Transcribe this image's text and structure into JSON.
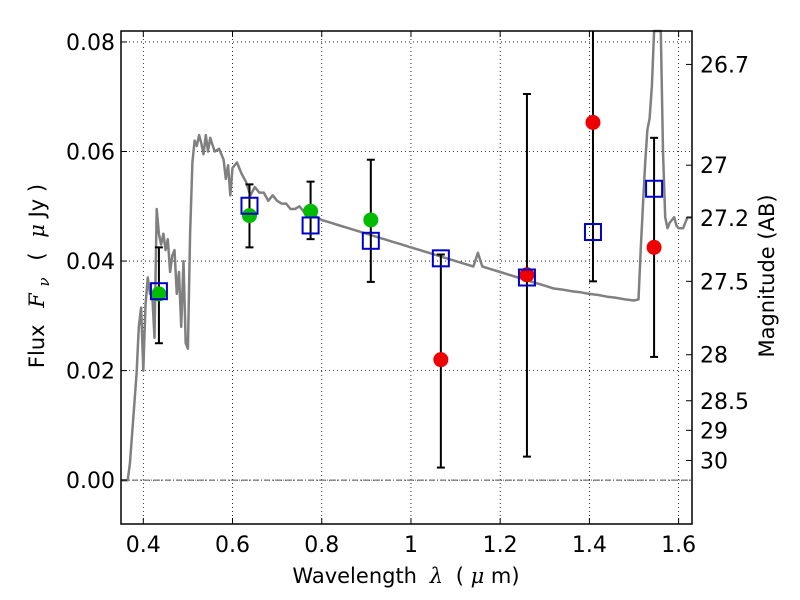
{
  "chart_data": {
    "type": "scatter",
    "title": "",
    "xlabel_parts": [
      "Wavelength",
      "λ",
      "(",
      "μ",
      "m)"
    ],
    "ylabel_parts": [
      "Flux",
      "F",
      "ν",
      "(",
      "μ",
      "Jy )"
    ],
    "y2label": "Magnitude (AB)",
    "xlim": [
      0.35,
      1.63
    ],
    "ylim": [
      -0.008,
      0.082
    ],
    "grid": true,
    "x_ticks": [
      0.4,
      0.6,
      0.8,
      1.0,
      1.2,
      1.4,
      1.6
    ],
    "x_tick_labels": [
      "0.4",
      "0.6",
      "0.8",
      "1",
      "1.2",
      "1.4",
      "1.6"
    ],
    "y_ticks": [
      0.0,
      0.02,
      0.04,
      0.06,
      0.08
    ],
    "y_tick_labels": [
      "0.00",
      "0.02",
      "0.04",
      "0.06",
      "0.08"
    ],
    "y2_ticks": [
      {
        "label": "26.7",
        "flux": 0.0759
      },
      {
        "label": "27",
        "flux": 0.0575
      },
      {
        "label": "27.2",
        "flux": 0.0479
      },
      {
        "label": "27.5",
        "flux": 0.0363
      },
      {
        "label": "28",
        "flux": 0.0229
      },
      {
        "label": "28.5",
        "flux": 0.0145
      },
      {
        "label": "29",
        "flux": 0.0091
      },
      {
        "label": "30",
        "flux": 0.0036
      }
    ],
    "zero_line": 0.0,
    "model_spectrum": {
      "color": "#808080",
      "points": [
        [
          0.35,
          0.0
        ],
        [
          0.365,
          0.0
        ],
        [
          0.37,
          0.003
        ],
        [
          0.385,
          0.0195
        ],
        [
          0.39,
          0.028
        ],
        [
          0.395,
          0.0315
        ],
        [
          0.4,
          0.02
        ],
        [
          0.405,
          0.032
        ],
        [
          0.41,
          0.037
        ],
        [
          0.415,
          0.034
        ],
        [
          0.42,
          0.034
        ],
        [
          0.425,
          0.026
        ],
        [
          0.43,
          0.0495
        ],
        [
          0.435,
          0.045
        ],
        [
          0.44,
          0.043
        ],
        [
          0.445,
          0.045
        ],
        [
          0.45,
          0.042
        ],
        [
          0.455,
          0.044
        ],
        [
          0.46,
          0.038
        ],
        [
          0.465,
          0.041
        ],
        [
          0.47,
          0.042
        ],
        [
          0.475,
          0.034
        ],
        [
          0.48,
          0.038
        ],
        [
          0.485,
          0.028
        ],
        [
          0.49,
          0.04
        ],
        [
          0.495,
          0.025
        ],
        [
          0.5,
          0.024
        ],
        [
          0.505,
          0.045
        ],
        [
          0.51,
          0.058
        ],
        [
          0.515,
          0.062
        ],
        [
          0.52,
          0.061
        ],
        [
          0.525,
          0.063
        ],
        [
          0.53,
          0.0615
        ],
        [
          0.535,
          0.0595
        ],
        [
          0.54,
          0.063
        ],
        [
          0.545,
          0.06
        ],
        [
          0.55,
          0.0625
        ],
        [
          0.56,
          0.06
        ],
        [
          0.57,
          0.0605
        ],
        [
          0.58,
          0.0585
        ],
        [
          0.585,
          0.055
        ],
        [
          0.59,
          0.0575
        ],
        [
          0.595,
          0.052
        ],
        [
          0.6,
          0.057
        ],
        [
          0.61,
          0.058
        ],
        [
          0.62,
          0.056
        ],
        [
          0.63,
          0.0545
        ],
        [
          0.64,
          0.052
        ],
        [
          0.65,
          0.0535
        ],
        [
          0.66,
          0.0525
        ],
        [
          0.67,
          0.0525
        ],
        [
          0.68,
          0.051
        ],
        [
          0.69,
          0.052
        ],
        [
          0.7,
          0.051
        ],
        [
          0.71,
          0.0505
        ],
        [
          0.72,
          0.0505
        ],
        [
          0.73,
          0.0495
        ],
        [
          0.74,
          0.0495
        ],
        [
          0.75,
          0.05
        ],
        [
          0.76,
          0.049
        ],
        [
          0.77,
          0.0485
        ],
        [
          0.78,
          0.0485
        ],
        [
          0.79,
          0.048
        ],
        [
          0.8,
          0.0475
        ],
        [
          0.82,
          0.047
        ],
        [
          0.84,
          0.0465
        ],
        [
          0.86,
          0.046
        ],
        [
          0.88,
          0.0455
        ],
        [
          0.9,
          0.045
        ],
        [
          0.92,
          0.0445
        ],
        [
          0.94,
          0.044
        ],
        [
          0.96,
          0.0435
        ],
        [
          0.98,
          0.043
        ],
        [
          1.0,
          0.0425
        ],
        [
          1.02,
          0.042
        ],
        [
          1.04,
          0.0415
        ],
        [
          1.06,
          0.041
        ],
        [
          1.08,
          0.0405
        ],
        [
          1.1,
          0.04
        ],
        [
          1.12,
          0.0395
        ],
        [
          1.14,
          0.039
        ],
        [
          1.15,
          0.0415
        ],
        [
          1.16,
          0.039
        ],
        [
          1.18,
          0.0385
        ],
        [
          1.2,
          0.038
        ],
        [
          1.22,
          0.0375
        ],
        [
          1.24,
          0.037
        ],
        [
          1.26,
          0.0365
        ],
        [
          1.28,
          0.036
        ],
        [
          1.3,
          0.0355
        ],
        [
          1.32,
          0.035
        ],
        [
          1.34,
          0.0348
        ],
        [
          1.36,
          0.0345
        ],
        [
          1.38,
          0.0343
        ],
        [
          1.4,
          0.034
        ],
        [
          1.42,
          0.0338
        ],
        [
          1.44,
          0.0335
        ],
        [
          1.46,
          0.0333
        ],
        [
          1.48,
          0.033
        ],
        [
          1.5,
          0.0328
        ],
        [
          1.51,
          0.033
        ],
        [
          1.515,
          0.042
        ],
        [
          1.52,
          0.05
        ],
        [
          1.525,
          0.058
        ],
        [
          1.53,
          0.064
        ],
        [
          1.535,
          0.066
        ],
        [
          1.54,
          0.072
        ],
        [
          1.545,
          0.083
        ],
        [
          1.56,
          0.083
        ],
        [
          1.565,
          0.06
        ],
        [
          1.57,
          0.048
        ],
        [
          1.575,
          0.046
        ],
        [
          1.58,
          0.047
        ],
        [
          1.585,
          0.0475
        ],
        [
          1.59,
          0.048
        ],
        [
          1.595,
          0.0465
        ],
        [
          1.6,
          0.046
        ],
        [
          1.61,
          0.046
        ],
        [
          1.62,
          0.048
        ],
        [
          1.63,
          0.048
        ]
      ]
    },
    "error_bars": [
      {
        "x": 0.435,
        "y": 0.034,
        "ylo": 0.025,
        "yhi": 0.0425
      },
      {
        "x": 0.638,
        "y": 0.0483,
        "ylo": 0.0425,
        "yhi": 0.054
      },
      {
        "x": 0.775,
        "y": 0.0491,
        "ylo": 0.044,
        "yhi": 0.0545
      },
      {
        "x": 0.91,
        "y": 0.0475,
        "ylo": 0.0362,
        "yhi": 0.0585
      },
      {
        "x": 1.067,
        "y": 0.022,
        "ylo": 0.0023,
        "yhi": 0.0412
      },
      {
        "x": 1.26,
        "y": 0.0375,
        "ylo": 0.0043,
        "yhi": 0.0705
      },
      {
        "x": 1.408,
        "y": 0.0653,
        "ylo": 0.0363,
        "yhi": 0.09
      },
      {
        "x": 1.545,
        "y": 0.0425,
        "ylo": 0.0225,
        "yhi": 0.0625
      }
    ],
    "series": [
      {
        "marker": "filled-circle",
        "color": "#00bb00",
        "points": [
          [
            0.435,
            0.034
          ],
          [
            0.638,
            0.0483
          ],
          [
            0.775,
            0.0491
          ],
          [
            0.91,
            0.0475
          ]
        ]
      },
      {
        "marker": "filled-circle",
        "color": "#ee0000",
        "points": [
          [
            1.067,
            0.022
          ],
          [
            1.26,
            0.0375
          ],
          [
            1.408,
            0.0653
          ],
          [
            1.545,
            0.0425
          ]
        ]
      },
      {
        "marker": "open-square",
        "color": "#0000cc",
        "points": [
          [
            0.435,
            0.0345
          ],
          [
            0.638,
            0.0501
          ],
          [
            0.775,
            0.0465
          ],
          [
            0.91,
            0.0437
          ],
          [
            1.067,
            0.0405
          ],
          [
            1.26,
            0.037
          ],
          [
            1.408,
            0.0453
          ],
          [
            1.545,
            0.0532
          ]
        ]
      }
    ]
  }
}
